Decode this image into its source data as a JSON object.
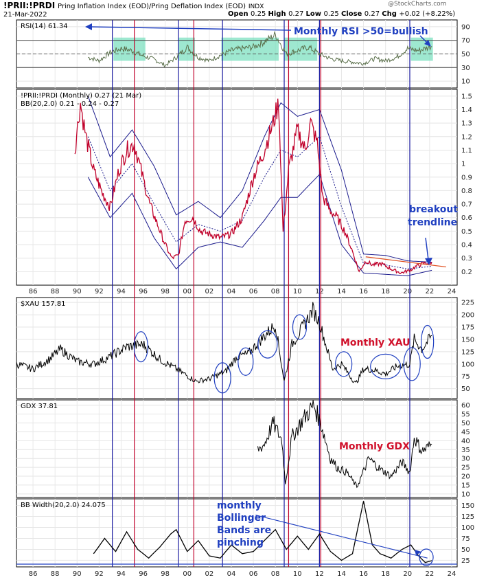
{
  "header": {
    "symbol": "!PRII:!PRDI",
    "name": "Pring Inflation Index (EOD)/Pring Deflation Index (EOD)",
    "exchange": "INDX",
    "date": "21-Mar-2022",
    "watermark": "@StockCharts.com",
    "ohlc": [
      {
        "k": "Open",
        "v": "0.25"
      },
      {
        "k": "High",
        "v": "0.27"
      },
      {
        "k": "Low",
        "v": "0.25"
      },
      {
        "k": "Close",
        "v": "0.27"
      },
      {
        "k": "Chg",
        "v": "+0.02 (+8.22%)"
      }
    ]
  },
  "colors": {
    "rsi_line": "#5a6f4a",
    "ratio_line": "#c0002a",
    "bb_line": "#1a1a8c",
    "black_line": "#000000",
    "blue_vline": "#1a1aa0",
    "red_vline": "#c0002a",
    "annotation_blue": "#1f3fc0",
    "annotation_red": "#d0102a",
    "highlight_fill": "#7de0c0",
    "trendline": "#e05020"
  },
  "x_axis_labels": [
    "86",
    "88",
    "90",
    "92",
    "94",
    "96",
    "98",
    "00",
    "02",
    "04",
    "06",
    "08",
    "10",
    "12",
    "14",
    "16",
    "18",
    "20",
    "22",
    "24"
  ],
  "x_axis_range": [
    1984.5,
    2024.5
  ],
  "vertical_markers": {
    "blue_years": [
      93.2,
      99.2,
      103.2,
      108.8,
      112.0,
      120.2
    ],
    "red_years": [
      95.2,
      100.6,
      109.2,
      112.0
    ]
  },
  "chart_data": [
    {
      "type": "line",
      "title": "RSI(14) 61.34",
      "yticks": [
        90,
        70,
        50,
        30,
        10
      ],
      "ylim": [
        0,
        100
      ],
      "reference_lines": [
        70,
        50,
        30
      ],
      "series": [
        {
          "name": "RSI(14)",
          "x": [
            1991,
            1992,
            1993,
            1994,
            1995,
            1996,
            1997,
            1998,
            1999,
            2000,
            2001,
            2002,
            2003,
            2004,
            2005,
            2006,
            2007,
            2008,
            2009,
            2010,
            2011,
            2012,
            2013,
            2014,
            2015,
            2016,
            2017,
            2018,
            2019,
            2020,
            2021,
            2022.2
          ],
          "values": [
            45,
            40,
            52,
            58,
            55,
            47,
            42,
            33,
            45,
            60,
            45,
            40,
            48,
            55,
            58,
            60,
            68,
            78,
            50,
            55,
            60,
            50,
            43,
            40,
            38,
            36,
            43,
            40,
            45,
            58,
            55,
            61.34
          ]
        }
      ],
      "highlighted_ranges": [
        [
          1993.3,
          1996.2
        ],
        [
          1999.2,
          2000.7
        ],
        [
          2003.1,
          2008.3
        ],
        [
          2008.8,
          2011.8
        ],
        [
          2020.3,
          2022.3
        ]
      ]
    },
    {
      "type": "line",
      "title": "!PRII:!PRDI (Monthly) 0.27 (21 Mar)",
      "subtitle": "BB(20,2.0) 0.21 - 0.24 - 0.27",
      "yticks": [
        1.5,
        1.4,
        1.3,
        1.2,
        1.1,
        1.0,
        0.9,
        0.8,
        0.7,
        0.6,
        0.5,
        0.4,
        0.3,
        0.2
      ],
      "ylim": [
        0.1,
        1.55
      ],
      "series": [
        {
          "name": "!PRII:!PRDI",
          "x": [
            1989.8,
            1990.3,
            1990.8,
            1991.5,
            1992.3,
            1993,
            1993.8,
            1994.5,
            1995.2,
            1995.8,
            1996.6,
            1997.3,
            1998,
            1998.6,
            1999.2,
            1999.8,
            2000.5,
            2001.2,
            2002,
            2003,
            2004,
            2005,
            2006,
            2007,
            2007.8,
            2008.3,
            2008.7,
            2009.2,
            2010,
            2010.7,
            2011.2,
            2011.8,
            2012.3,
            2013,
            2013.6,
            2014.3,
            2015,
            2015.6,
            2016.2,
            2016.8,
            2017.6,
            2018.5,
            2019.4,
            2020.2,
            2020.8,
            2021.4,
            2022.2
          ],
          "values": [
            1.1,
            1.45,
            1.2,
            0.95,
            0.78,
            0.68,
            0.95,
            1.1,
            1.15,
            0.95,
            0.7,
            0.55,
            0.4,
            0.3,
            0.32,
            0.58,
            0.6,
            0.5,
            0.48,
            0.45,
            0.48,
            0.6,
            0.9,
            1.1,
            1.3,
            1.45,
            0.5,
            0.95,
            1.25,
            1.1,
            1.3,
            1.15,
            0.75,
            0.65,
            0.6,
            0.5,
            0.35,
            0.2,
            0.28,
            0.25,
            0.26,
            0.22,
            0.19,
            0.21,
            0.24,
            0.26,
            0.27
          ]
        },
        {
          "name": "BB upper",
          "x": [
            1991,
            1993,
            1995,
            1997,
            1999,
            2001,
            2003,
            2005,
            2007,
            2008.5,
            2010,
            2012,
            2014,
            2016,
            2018,
            2020,
            2022.2
          ],
          "values": [
            1.5,
            1.05,
            1.25,
            0.98,
            0.62,
            0.72,
            0.6,
            0.8,
            1.2,
            1.45,
            1.35,
            1.4,
            0.95,
            0.33,
            0.32,
            0.28,
            0.27
          ]
        },
        {
          "name": "BB middle",
          "x": [
            1991,
            1993,
            1995,
            1997,
            1999,
            2001,
            2003,
            2005,
            2007,
            2008.5,
            2010,
            2012,
            2014,
            2016,
            2018,
            2020,
            2022.2
          ],
          "values": [
            1.2,
            0.8,
            1.0,
            0.7,
            0.42,
            0.55,
            0.5,
            0.58,
            0.9,
            1.1,
            1.05,
            1.2,
            0.68,
            0.26,
            0.25,
            0.22,
            0.24
          ]
        },
        {
          "name": "BB lower",
          "x": [
            1991,
            1993,
            1995,
            1997,
            1999,
            2001,
            2003,
            2005,
            2007,
            2008.5,
            2010,
            2012,
            2014,
            2016,
            2018,
            2020,
            2022.2
          ],
          "values": [
            0.9,
            0.6,
            0.78,
            0.45,
            0.22,
            0.38,
            0.42,
            0.38,
            0.58,
            0.75,
            0.75,
            0.92,
            0.4,
            0.19,
            0.18,
            0.17,
            0.21
          ]
        }
      ],
      "trendline": {
        "x": [
          2016.2,
          2023.5
        ],
        "values": [
          0.31,
          0.235
        ]
      }
    },
    {
      "type": "line",
      "title": "$XAU 157.81",
      "yticks": [
        225,
        200,
        175,
        150,
        125,
        100,
        75,
        50
      ],
      "ylim": [
        30,
        235
      ],
      "series": [
        {
          "name": "$XAU",
          "x": [
            1984.5,
            1986,
            1987.5,
            1988.5,
            1990,
            1991.5,
            1993,
            1994.5,
            1996,
            1997.5,
            1999,
            2000.8,
            2002,
            2003.5,
            2004.5,
            2005.5,
            2006.5,
            2008,
            2008.8,
            2009.5,
            2010.5,
            2011.4,
            2012,
            2013.2,
            2014,
            2015.3,
            2016,
            2017,
            2018,
            2019,
            2020.2,
            2020.6,
            2021.3,
            2022.2
          ],
          "values": [
            100,
            90,
            110,
            130,
            105,
            100,
            115,
            135,
            140,
            110,
            90,
            65,
            70,
            85,
            115,
            120,
            145,
            180,
            65,
            140,
            175,
            210,
            185,
            90,
            100,
            60,
            90,
            88,
            80,
            95,
            100,
            150,
            130,
            157.81
          ]
        }
      ]
    },
    {
      "type": "line",
      "title": "GDX 37.81",
      "yticks": [
        60,
        55,
        50,
        45,
        40,
        35,
        30,
        25,
        20,
        15,
        10
      ],
      "ylim": [
        8,
        63
      ],
      "series": [
        {
          "name": "GDX",
          "x": [
            2006.4,
            2007,
            2007.8,
            2008.6,
            2008.9,
            2009.5,
            2010.5,
            2011.5,
            2012.2,
            2013,
            2013.6,
            2014.5,
            2015.4,
            2016.5,
            2017.5,
            2018.5,
            2019.5,
            2020.2,
            2020.6,
            2021.3,
            2022.2
          ],
          "values": [
            35,
            38,
            50,
            40,
            16,
            42,
            52,
            60,
            48,
            30,
            25,
            22,
            14,
            30,
            24,
            20,
            28,
            22,
            42,
            34,
            37.81
          ]
        }
      ]
    },
    {
      "type": "line",
      "title": "BB Width(20,2.0) 24.075",
      "yticks": [
        150,
        125,
        100,
        75,
        50,
        25
      ],
      "ylim": [
        10,
        165
      ],
      "series": [
        {
          "name": "BB Width",
          "x": [
            1991.5,
            1992.5,
            1993.5,
            1994.5,
            1995.5,
            1996.5,
            1997.5,
            1998.5,
            1999,
            2000,
            2001,
            2002,
            2003,
            2004,
            2005,
            2006,
            2007,
            2008,
            2009,
            2010,
            2011,
            2012,
            2013,
            2014,
            2015,
            2016,
            2016.8,
            2017.5,
            2018.5,
            2019.5,
            2020.3,
            2021,
            2021.6,
            2022.2
          ],
          "values": [
            40,
            75,
            45,
            90,
            50,
            30,
            55,
            85,
            95,
            45,
            70,
            35,
            30,
            60,
            40,
            45,
            70,
            95,
            50,
            80,
            50,
            85,
            45,
            25,
            40,
            160,
            60,
            40,
            30,
            50,
            60,
            35,
            20,
            24.075
          ]
        }
      ],
      "trendline": {
        "x": [
          2006.2,
          2021.8
        ],
        "values": [
          128,
          30
        ]
      }
    }
  ],
  "annotations": {
    "rsi": "Monthly RSI >50=bullish",
    "breakout_1": "breakout",
    "breakout_2": "trendline",
    "xau": "Monthly XAU",
    "gdx": "Monthly GDX",
    "bbw_1": "monthly",
    "bbw_2": "Bollinger",
    "bbw_3": "Bands are",
    "bbw_4": "pinching"
  }
}
